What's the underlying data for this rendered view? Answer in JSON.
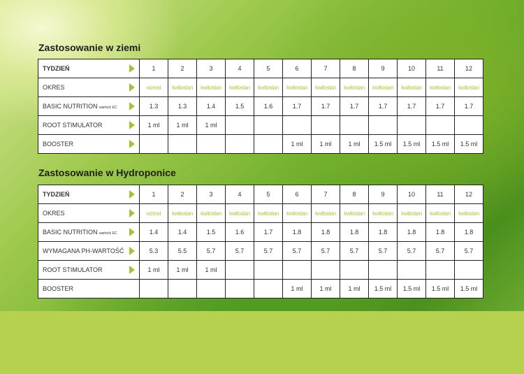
{
  "sections": [
    {
      "title": "Zastosowanie w ziemi",
      "rows": [
        {
          "label": "TYDZIEŃ",
          "values": [
            "1",
            "2",
            "3",
            "4",
            "5",
            "6",
            "7",
            "8",
            "9",
            "10",
            "11",
            "12"
          ]
        },
        {
          "label": "OKRES",
          "values": [
            "wzrost",
            "kwitostan",
            "kwitostan",
            "kwitostan",
            "kwitostan",
            "kwitostan",
            "kwitostan",
            "kwitostan",
            "kwitostan",
            "kwitostan",
            "kwitostan",
            "kwitostan"
          ]
        },
        {
          "label": "BASIC NUTRITION",
          "sublabel": "wartość EC",
          "values": [
            "1.3",
            "1.3",
            "1.4",
            "1.5",
            "1.6",
            "1.7",
            "1.7",
            "1.7",
            "1.7",
            "1.7",
            "1.7",
            "1.7"
          ]
        },
        {
          "label": "ROOT STIMULATOR",
          "values": [
            "1 ml",
            "1 ml",
            "1 ml",
            "",
            "",
            "",
            "",
            "",
            "",
            "",
            "",
            ""
          ]
        },
        {
          "label": "BOOSTER",
          "values": [
            "",
            "",
            "",
            "",
            "",
            "1 ml",
            "1 ml",
            "1 ml",
            "1.5 ml",
            "1.5 ml",
            "1.5 ml",
            "1.5 ml"
          ]
        }
      ]
    },
    {
      "title": "Zastosowanie w Hydroponice",
      "rows": [
        {
          "label": "TYDZIEŃ",
          "values": [
            "1",
            "2",
            "3",
            "4",
            "5",
            "6",
            "7",
            "8",
            "9",
            "10",
            "11",
            "12"
          ]
        },
        {
          "label": "OKRES",
          "values": [
            "wzrost",
            "kwitostan",
            "kwitostan",
            "kwitostan",
            "kwitostan",
            "kwitostan",
            "kwitostan",
            "kwitostan",
            "kwitostan",
            "kwitostan",
            "kwitostan",
            "kwitostan"
          ]
        },
        {
          "label": "BASIC NUTRITION",
          "sublabel": "wartość EC",
          "values": [
            "1.4",
            "1.4",
            "1.5",
            "1.6",
            "1.7",
            "1.8",
            "1.8",
            "1.8",
            "1.8",
            "1.8",
            "1.8",
            "1.8"
          ]
        },
        {
          "label": "WYMAGANA PH-WARTOŚĆ",
          "values": [
            "5.3",
            "5.5",
            "5.7",
            "5.7",
            "5.7",
            "5.7",
            "5.7",
            "5.7",
            "5.7",
            "5.7",
            "5.7",
            "5.7"
          ]
        },
        {
          "label": "ROOT STIMULATOR",
          "values": [
            "1 ml",
            "1 ml",
            "1 ml",
            "",
            "",
            "",
            "",
            "",
            "",
            "",
            "",
            ""
          ]
        },
        {
          "label": "BOOSTER",
          "values": [
            "",
            "",
            "",
            "",
            "",
            "1 ml",
            "1 ml",
            "1 ml",
            "1.5 ml",
            "1.5 ml",
            "1.5 ml",
            "1.5 ml"
          ]
        }
      ]
    }
  ],
  "colors": {
    "accent": "#9cc63a",
    "period_text": "#a7c94a",
    "band": "#b6d150"
  }
}
